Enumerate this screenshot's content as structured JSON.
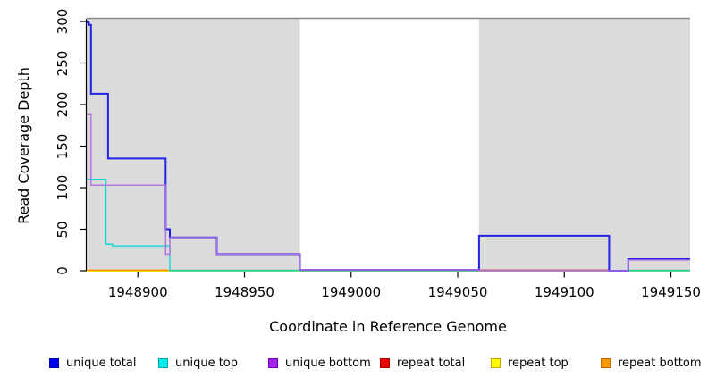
{
  "chart_data": {
    "type": "line",
    "subtype": "step-coverage",
    "title": "",
    "xlabel": "Coordinate in Reference Genome",
    "ylabel": "Read Coverage Depth",
    "xlim": [
      1948876,
      1949159
    ],
    "ylim": [
      0,
      300
    ],
    "x_ticks": [
      1948900,
      1948950,
      1949000,
      1949050,
      1949100,
      1949150
    ],
    "y_ticks": [
      0,
      50,
      100,
      150,
      200,
      250,
      300
    ],
    "grid": false,
    "legend_position": "bottom",
    "background_color": "#ffffff",
    "shaded_region_color": "#DBDBDB",
    "top_border_color": "#8A8A8A",
    "shaded_regions": [
      {
        "name": "left-shaded-region",
        "x0": 1948876,
        "x1": 1948976
      },
      {
        "name": "right-shaded-region",
        "x0": 1949060,
        "x1": 1949159
      }
    ],
    "series": [
      {
        "name": "unique total",
        "color": "#2222E6",
        "line_width": 2,
        "points": [
          [
            1948876,
            299
          ],
          [
            1948877,
            296
          ],
          [
            1948878,
            213
          ],
          [
            1948886,
            135
          ],
          [
            1948913,
            50
          ],
          [
            1948915,
            40
          ],
          [
            1948937,
            20
          ],
          [
            1948976,
            1
          ],
          [
            1949060,
            42
          ],
          [
            1949121,
            0
          ],
          [
            1949130,
            14
          ],
          [
            1949159,
            14
          ]
        ]
      },
      {
        "name": "unique top",
        "color": "#00D8D8",
        "line_width": 1.3,
        "points": [
          [
            1948876,
            110
          ],
          [
            1948885,
            32
          ],
          [
            1948888,
            30
          ],
          [
            1948915,
            0
          ],
          [
            1949159,
            0
          ]
        ]
      },
      {
        "name": "unique bottom",
        "color": "#B06FE0",
        "line_width": 1.4,
        "points": [
          [
            1948876,
            188
          ],
          [
            1948878,
            103
          ],
          [
            1948913,
            20
          ],
          [
            1948915,
            40
          ],
          [
            1948937,
            20
          ],
          [
            1948976,
            1
          ],
          [
            1949060,
            0
          ],
          [
            1949130,
            13
          ],
          [
            1949159,
            13
          ]
        ]
      },
      {
        "name": "repeat total",
        "color": "#DD3333",
        "line_width": 1.5,
        "value": 0,
        "points": [
          [
            1949060,
            0
          ],
          [
            1949121,
            0
          ]
        ]
      },
      {
        "name": "repeat top",
        "color": "#EEEE00",
        "line_width": 1.5,
        "value": 0,
        "points": [
          [
            1948876,
            0
          ],
          [
            1949159,
            0
          ]
        ]
      },
      {
        "name": "repeat bottom",
        "color": "#FF9000",
        "line_width": 1.5,
        "value": 0,
        "points": [
          [
            1948876,
            0
          ],
          [
            1948915,
            0
          ]
        ]
      }
    ],
    "zero_overlap_segments": {
      "comment": "blended zero-depth line visible as soft green",
      "color": "#7CC87C",
      "segments": [
        [
          1948915,
          1948976
        ],
        [
          1949130,
          1949159
        ]
      ]
    }
  },
  "legend": {
    "items": [
      {
        "label": "unique total",
        "fill": "#0000EE",
        "border": "#0000B0"
      },
      {
        "label": "unique top",
        "fill": "#00EEEE",
        "border": "#00AAAA"
      },
      {
        "label": "unique bottom",
        "fill": "#A020F0",
        "border": "#6E00A8"
      },
      {
        "label": "repeat total",
        "fill": "#EE0000",
        "border": "#AA0000"
      },
      {
        "label": "repeat top",
        "fill": "#FFFF00",
        "border": "#C8A000"
      },
      {
        "label": "repeat bottom",
        "fill": "#FF9900",
        "border": "#C86400"
      }
    ]
  }
}
